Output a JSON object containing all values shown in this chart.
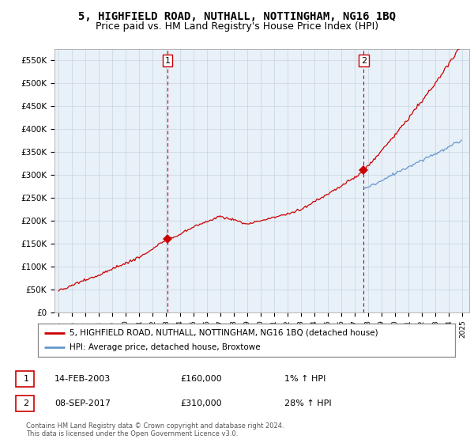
{
  "title": "5, HIGHFIELD ROAD, NUTHALL, NOTTINGHAM, NG16 1BQ",
  "subtitle": "Price paid vs. HM Land Registry's House Price Index (HPI)",
  "ylabel_ticks": [
    "£0",
    "£50K",
    "£100K",
    "£150K",
    "£200K",
    "£250K",
    "£300K",
    "£350K",
    "£400K",
    "£450K",
    "£500K",
    "£550K"
  ],
  "ytick_values": [
    0,
    50000,
    100000,
    150000,
    200000,
    250000,
    300000,
    350000,
    400000,
    450000,
    500000,
    550000
  ],
  "ylim": [
    0,
    575000
  ],
  "legend_line1": "5, HIGHFIELD ROAD, NUTHALL, NOTTINGHAM, NG16 1BQ (detached house)",
  "legend_line2": "HPI: Average price, detached house, Broxtowe",
  "sale1_date": "14-FEB-2003",
  "sale1_price": "£160,000",
  "sale1_hpi": "1% ↑ HPI",
  "sale2_date": "08-SEP-2017",
  "sale2_price": "£310,000",
  "sale2_hpi": "28% ↑ HPI",
  "footer": "Contains HM Land Registry data © Crown copyright and database right 2024.\nThis data is licensed under the Open Government Licence v3.0.",
  "background_color": "#ffffff",
  "plot_bg_color": "#e8f0f8",
  "grid_color": "#c8d4e0",
  "red_line_color": "#cc0000",
  "blue_line_color": "#6699cc",
  "sale_marker_color": "#cc0000",
  "dashed_line_color": "#cc0000",
  "title_fontsize": 10,
  "subtitle_fontsize": 9,
  "sale1_year": 2003.12,
  "sale1_price_val": 160000,
  "sale2_year": 2017.67,
  "sale2_price_val": 310000
}
